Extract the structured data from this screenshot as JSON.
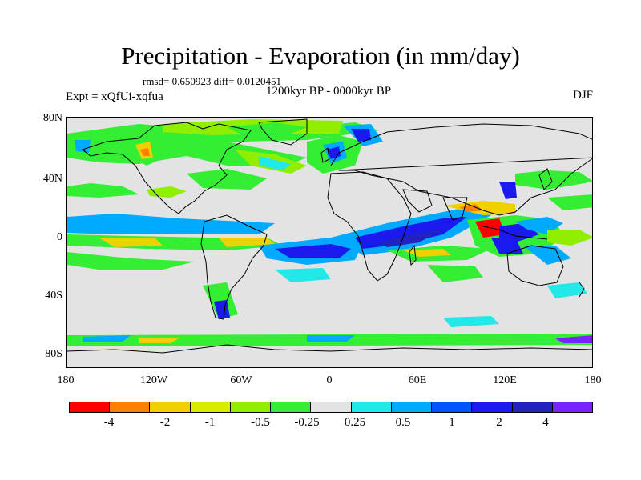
{
  "title": "Precipitation - Evaporation (in mm/day)",
  "stats": "rmsd= 0.650923 diff= 0.0120451",
  "experiment": "Expt = xQfUi-xqfua",
  "period": "1200kyr BP - 0000kyr BP",
  "season": "DJF",
  "map": {
    "lat_ticks": [
      "80N",
      "40N",
      "0",
      "40S",
      "80S"
    ],
    "lon_ticks": [
      "180",
      "120W",
      "60W",
      "0",
      "60E",
      "120E",
      "180"
    ]
  },
  "colorbar": {
    "colors": [
      "#ff0000",
      "#ff8000",
      "#f0d000",
      "#d8ec00",
      "#90ee00",
      "#33ee33",
      "#e3e3e3",
      "#22e8e8",
      "#00aaff",
      "#0055ff",
      "#1a1aee",
      "#2222c0",
      "#7722ff"
    ],
    "labels": [
      "-4",
      "-2",
      "-1",
      "-0.5",
      "-0.25",
      "0.25",
      "0.5",
      "1",
      "2",
      "4"
    ]
  }
}
